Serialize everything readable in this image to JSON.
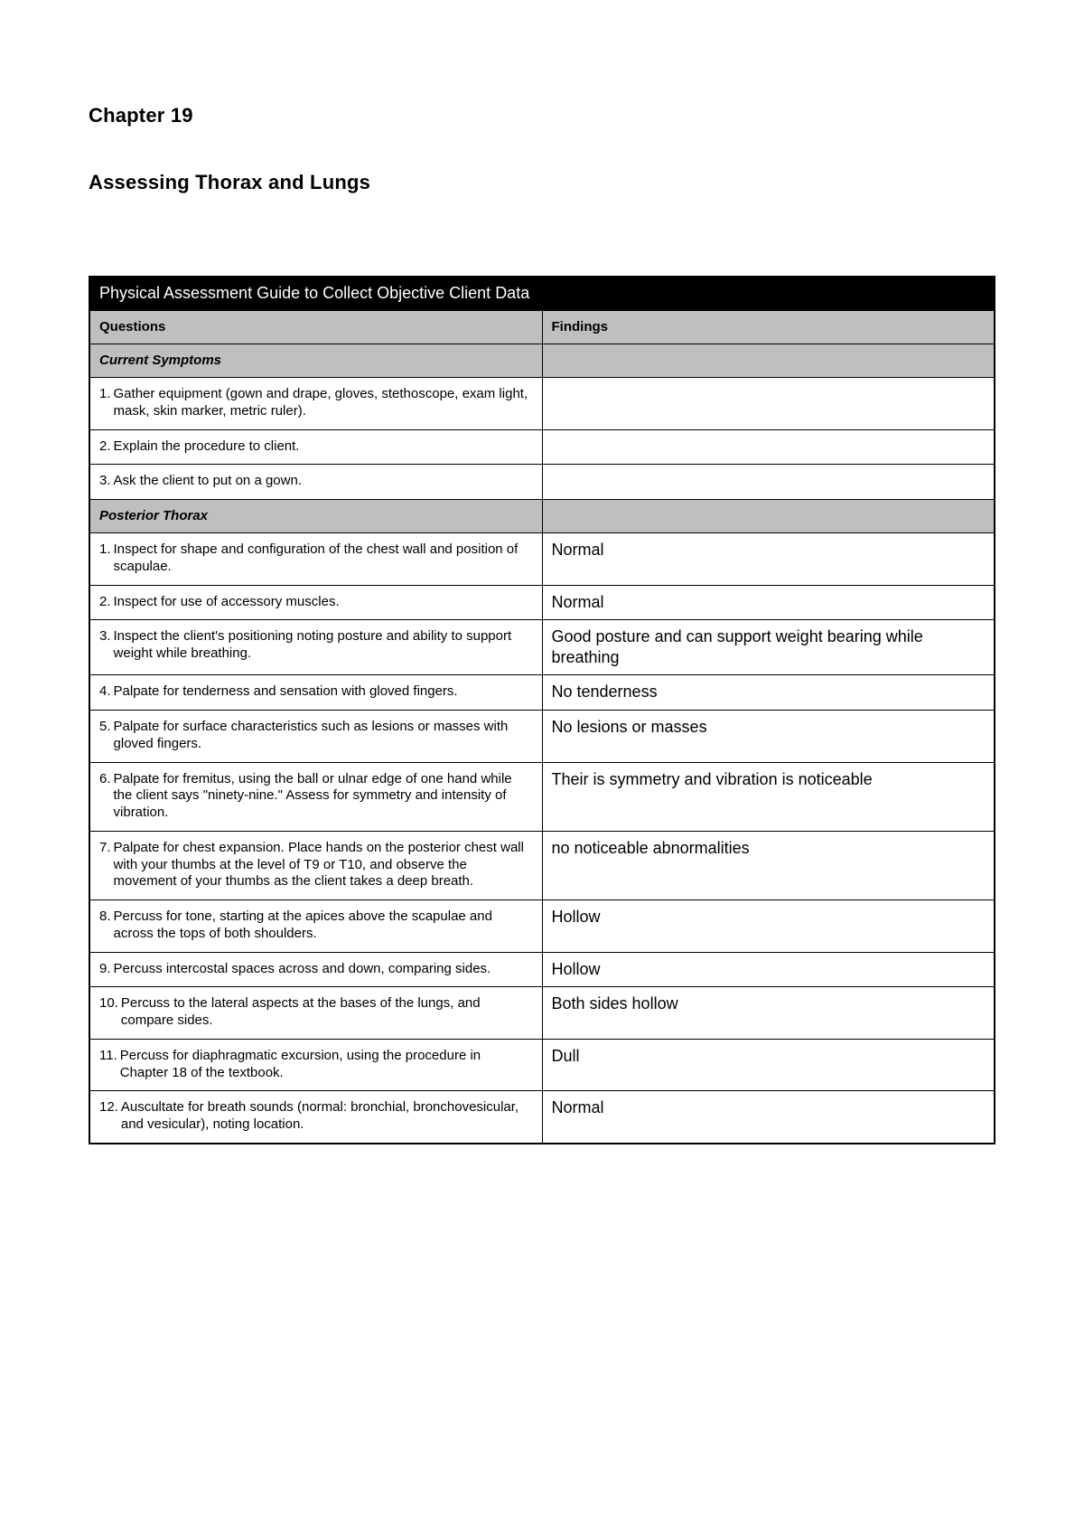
{
  "document": {
    "chapter": "Chapter 19",
    "title": "Assessing Thorax and Lungs"
  },
  "table": {
    "caption": "Physical Assessment Guide to Collect Objective Client Data",
    "columns": {
      "q": "Questions",
      "f": "Findings"
    },
    "sections": [
      {
        "heading": "Current Symptoms",
        "rows": [
          {
            "n": "1.",
            "q": "Gather equipment (gown and drape, gloves, stethoscope, exam light, mask, skin marker, metric ruler).",
            "f": ""
          },
          {
            "n": "2.",
            "q": "Explain the procedure to client.",
            "f": ""
          },
          {
            "n": "3.",
            "q": "Ask the client to put on a gown.",
            "f": ""
          }
        ]
      },
      {
        "heading": "Posterior Thorax",
        "rows": [
          {
            "n": "1.",
            "q": "Inspect for shape and configuration of the chest wall and position of scapulae.",
            "f": "Normal"
          },
          {
            "n": "2.",
            "q": "Inspect for use of accessory muscles.",
            "f": "Normal"
          },
          {
            "n": "3.",
            "q": "Inspect the client's positioning noting posture and ability to support weight while breathing.",
            "f": "Good posture and can support weight bearing while breathing"
          },
          {
            "n": "4.",
            "q": "Palpate for tenderness and sensation with gloved fingers.",
            "f": "No tenderness"
          },
          {
            "n": "5.",
            "q": "Palpate for surface characteristics such as lesions or masses with gloved fingers.",
            "f": "No lesions or masses"
          },
          {
            "n": "6.",
            "q": "Palpate for fremitus, using the ball or ulnar edge of one hand while the client says \"ninety-nine.\" Assess for symmetry and intensity of vibration.",
            "f": "Their is symmetry and vibration is noticeable"
          },
          {
            "n": "7.",
            "q": "Palpate for chest expansion. Place hands on the posterior chest wall with your thumbs at the level of T9 or T10, and observe the movement of your thumbs as the client takes a deep breath.",
            "f": "no noticeable abnormalities"
          },
          {
            "n": "8.",
            "q": "Percuss for tone, starting at the apices above the scapulae and across the tops of both shoulders.",
            "f": "Hollow"
          },
          {
            "n": "9.",
            "q": "Percuss intercostal spaces across and down, comparing sides.",
            "f": "Hollow"
          },
          {
            "n": "10.",
            "q": "Percuss to the lateral aspects at the bases of the lungs, and compare sides.",
            "f": "Both sides hollow"
          },
          {
            "n": "11.",
            "q": "Percuss for diaphragmatic excursion, using the procedure in Chapter 18 of the textbook.",
            "f": "Dull"
          },
          {
            "n": "12.",
            "q": "Auscultate for breath sounds (normal: bronchial, bronchovesicular, and vesicular), noting location.",
            "f": "Normal"
          }
        ]
      }
    ]
  },
  "styles": {
    "page_bg": "#ffffff",
    "header_bg": "#000000",
    "header_fg": "#ffffff",
    "section_bg": "#bfbfbf",
    "border_color": "#000000",
    "body_font": "Arial",
    "chapter_fontsize": 22,
    "caption_fontsize": 18,
    "colhdr_fontsize": 15,
    "q_fontsize": 15,
    "f_fontsize": 18
  }
}
